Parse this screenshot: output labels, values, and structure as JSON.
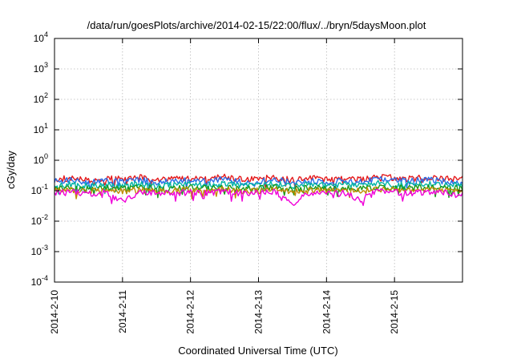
{
  "chart_data": {
    "type": "line",
    "title": "/data/run/goesPlots/archive/2014-02-15/22:00/flux/../bryn/5daysMoon.plot",
    "xlabel": "Coordinated Universal Time (UTC)",
    "ylabel": "cGy/day",
    "yscale": "log",
    "ylim": [
      0.0001,
      10000
    ],
    "xlim": [
      0,
      6
    ],
    "grid": true,
    "y_ticks": [
      {
        "base": "10",
        "exp": "4",
        "value": 10000
      },
      {
        "base": "10",
        "exp": "3",
        "value": 1000
      },
      {
        "base": "10",
        "exp": "2",
        "value": 100
      },
      {
        "base": "10",
        "exp": "1",
        "value": 10
      },
      {
        "base": "10",
        "exp": "0",
        "value": 1
      },
      {
        "base": "10",
        "exp": "-1",
        "value": 0.1
      },
      {
        "base": "10",
        "exp": "-2",
        "value": 0.01
      },
      {
        "base": "10",
        "exp": "-3",
        "value": 0.001
      },
      {
        "base": "10",
        "exp": "-4",
        "value": 0.0001
      }
    ],
    "x_ticks": [
      {
        "label": "2014-2-10",
        "value": 0
      },
      {
        "label": "2014-2-11",
        "value": 1
      },
      {
        "label": "2014-2-12",
        "value": 2
      },
      {
        "label": "2014-2-13",
        "value": 3
      },
      {
        "label": "2014-2-14",
        "value": 4
      },
      {
        "label": "2014-2-15",
        "value": 5
      }
    ],
    "x": [
      0,
      0.25,
      0.5,
      0.75,
      1,
      1.25,
      1.5,
      1.75,
      2,
      2.25,
      2.5,
      2.75,
      3,
      3.25,
      3.5,
      3.75,
      4,
      4.25,
      4.5,
      4.75,
      5,
      5.25,
      5.5,
      5.75,
      6
    ],
    "series": [
      {
        "color": "#e41a1c",
        "values": [
          0.24,
          0.26,
          0.23,
          0.25,
          0.24,
          0.27,
          0.22,
          0.25,
          0.26,
          0.24,
          0.28,
          0.23,
          0.25,
          0.27,
          0.22,
          0.26,
          0.24,
          0.25,
          0.23,
          0.29,
          0.26,
          0.25,
          0.27,
          0.24,
          0.25
        ]
      },
      {
        "color": "#2b6ee8",
        "values": [
          0.2,
          0.22,
          0.19,
          0.21,
          0.2,
          0.23,
          0.18,
          0.21,
          0.22,
          0.2,
          0.24,
          0.19,
          0.21,
          0.23,
          0.18,
          0.22,
          0.2,
          0.21,
          0.19,
          0.27,
          0.22,
          0.21,
          0.23,
          0.2,
          0.21
        ]
      },
      {
        "color": "#00b3a4",
        "values": [
          0.15,
          0.16,
          0.145,
          0.155,
          0.15,
          0.165,
          0.14,
          0.155,
          0.16,
          0.15,
          0.17,
          0.145,
          0.155,
          0.165,
          0.14,
          0.16,
          0.15,
          0.155,
          0.145,
          0.175,
          0.16,
          0.155,
          0.165,
          0.15,
          0.15
        ]
      },
      {
        "color": "#1a9a1a",
        "values": [
          0.12,
          0.125,
          0.115,
          0.12,
          0.118,
          0.13,
          0.112,
          0.12,
          0.125,
          0.118,
          0.132,
          0.114,
          0.12,
          0.128,
          0.11,
          0.124,
          0.118,
          0.12,
          0.115,
          0.135,
          0.125,
          0.12,
          0.128,
          0.118,
          0.12
        ]
      },
      {
        "color": "#c08a00",
        "values": [
          0.1,
          0.105,
          0.097,
          0.101,
          0.099,
          0.108,
          0.094,
          0.1,
          0.104,
          0.098,
          0.11,
          0.095,
          0.1,
          0.106,
          0.092,
          0.103,
          0.098,
          0.1,
          0.096,
          0.112,
          0.104,
          0.1,
          0.106,
          0.098,
          0.1
        ]
      },
      {
        "color": "#f000d8",
        "values": [
          0.085,
          0.09,
          0.082,
          0.086,
          0.045,
          0.09,
          0.08,
          0.085,
          0.088,
          0.083,
          0.093,
          0.08,
          0.085,
          0.09,
          0.035,
          0.087,
          0.083,
          0.085,
          0.05,
          0.095,
          0.088,
          0.085,
          0.09,
          0.083,
          0.07
        ]
      }
    ]
  }
}
